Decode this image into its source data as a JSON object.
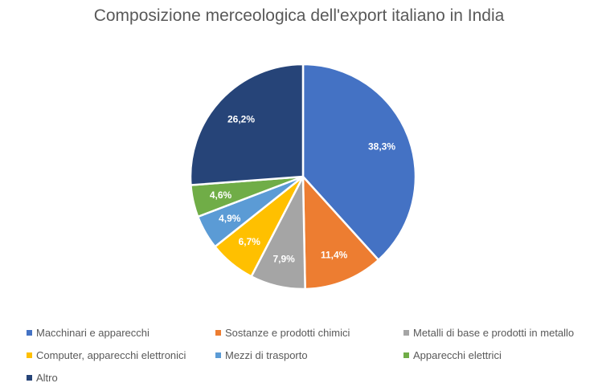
{
  "chart_data": {
    "type": "pie",
    "title": "Composizione merceologica dell'export italiano in India",
    "categories": [
      "Macchinari e apparecchi",
      "Sostanze e prodotti chimici",
      "Metalli di base e prodotti in metallo",
      "Computer, apparecchi elettronici",
      "Mezzi di trasporto",
      "Apparecchi elettrici",
      "Altro"
    ],
    "values": [
      38.3,
      11.4,
      7.9,
      6.7,
      4.9,
      4.6,
      26.2
    ],
    "labels": [
      "38,3%",
      "11,4%",
      "7,9%",
      "6,7%",
      "4,9%",
      "4,6%",
      "26,2%"
    ],
    "colors": [
      "#4472C4",
      "#ED7D31",
      "#A5A5A5",
      "#FFC000",
      "#5B9BD5",
      "#70AD47",
      "#264478"
    ],
    "legend_position": "bottom"
  }
}
